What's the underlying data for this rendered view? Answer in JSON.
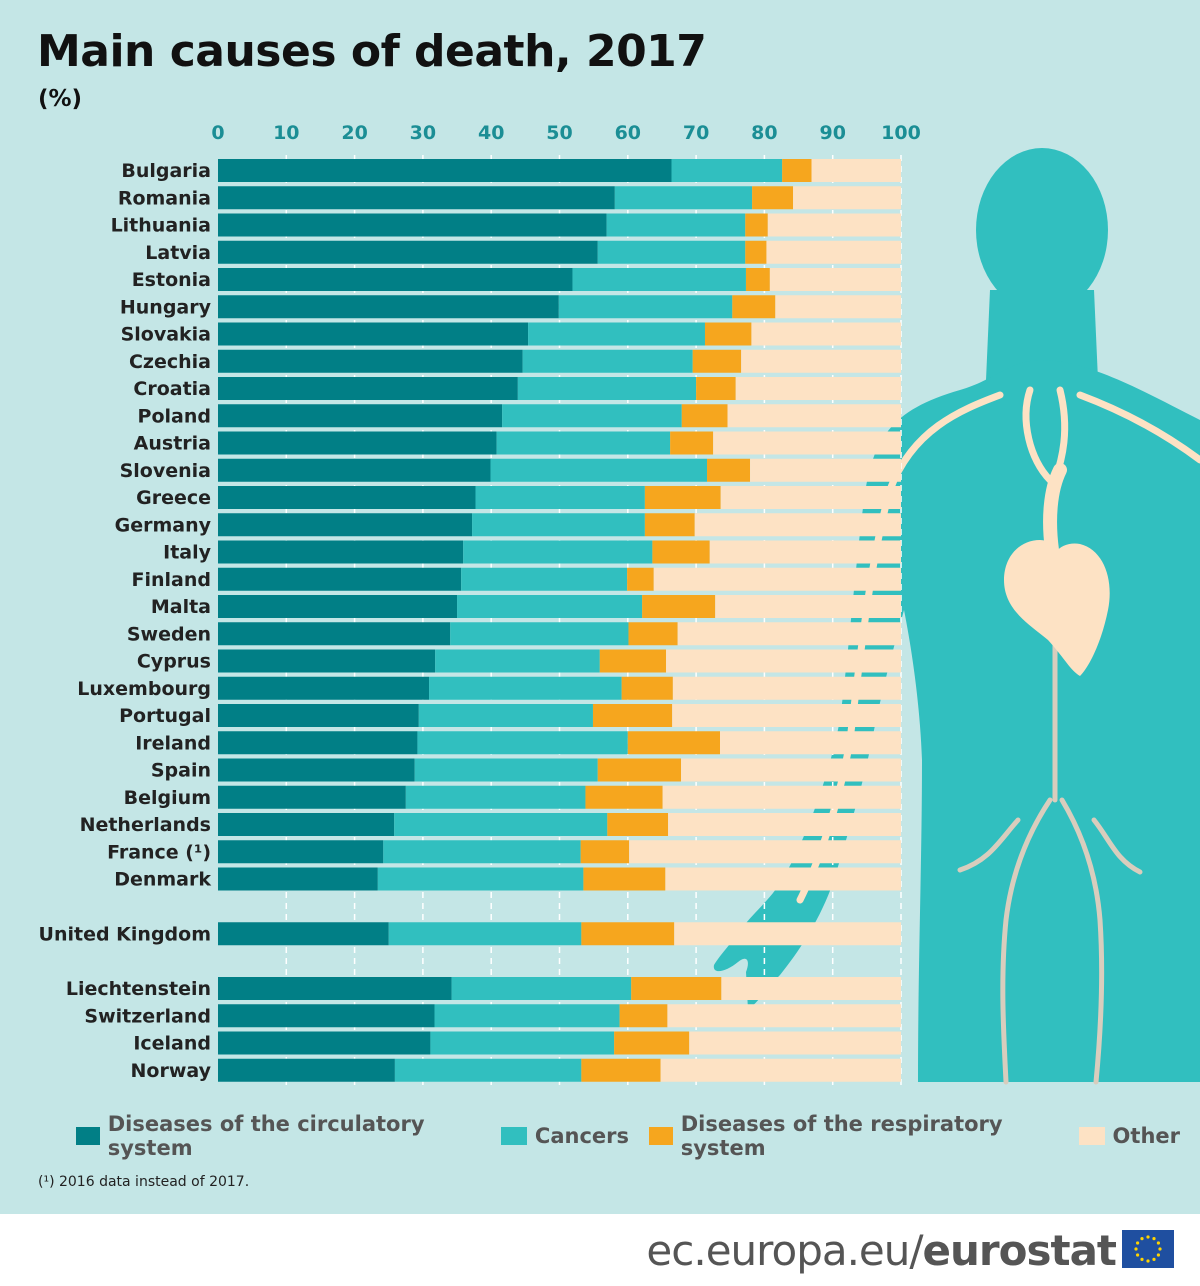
{
  "header": {
    "title": "Main causes of death, 2017",
    "subtitle": "(%)"
  },
  "chart_data": {
    "type": "bar",
    "orientation": "horizontal",
    "stacked": true,
    "xlim": [
      0,
      100
    ],
    "x_ticks": [
      "0",
      "10",
      "20",
      "30",
      "40",
      "50",
      "60",
      "70",
      "80",
      "90",
      "100"
    ],
    "grid": true,
    "legend_position": "bottom",
    "categories": [
      "Bulgaria",
      "Romania",
      "Lithuania",
      "Latvia",
      "Estonia",
      "Hungary",
      "Slovakia",
      "Czechia",
      "Croatia",
      "Poland",
      "Austria",
      "Slovenia",
      "Greece",
      "Germany",
      "Italy",
      "Finland",
      "Malta",
      "Sweden",
      "Cyprus",
      "Luxembourg",
      "Portugal",
      "Ireland",
      "Spain",
      "Belgium",
      "Netherlands",
      "France (¹)",
      "Denmark",
      "United Kingdom",
      "Liechtenstein",
      "Switzerland",
      "Iceland",
      "Norway"
    ],
    "groups": [
      27,
      1,
      4
    ],
    "series": [
      {
        "name": "Diseases of the circulatory system",
        "color": "#017f86",
        "values": [
          66.4,
          58.1,
          56.9,
          55.6,
          51.9,
          49.9,
          45.4,
          44.6,
          43.9,
          41.6,
          40.8,
          39.9,
          37.7,
          37.2,
          35.9,
          35.6,
          35.0,
          34.0,
          31.8,
          30.9,
          29.4,
          29.2,
          28.8,
          27.5,
          25.8,
          24.2,
          23.4,
          25.0,
          34.2,
          31.7,
          31.1,
          25.9
        ]
      },
      {
        "name": "Cancers",
        "color": "#31bfbf",
        "values": [
          16.2,
          20.1,
          20.3,
          21.6,
          25.4,
          25.4,
          25.9,
          24.9,
          26.1,
          26.3,
          25.4,
          31.7,
          24.8,
          25.3,
          27.7,
          24.3,
          27.1,
          26.1,
          24.1,
          28.2,
          25.5,
          30.8,
          26.8,
          26.3,
          31.2,
          28.9,
          30.1,
          28.2,
          26.3,
          27.1,
          26.9,
          27.3
        ]
      },
      {
        "name": "Diseases of the respiratory system",
        "color": "#f6a61e",
        "values": [
          4.3,
          6.0,
          3.3,
          3.1,
          3.5,
          6.3,
          6.8,
          7.1,
          5.8,
          6.7,
          6.3,
          6.3,
          11.1,
          7.3,
          8.4,
          3.9,
          10.7,
          7.2,
          9.7,
          7.5,
          11.6,
          13.5,
          12.2,
          11.3,
          8.9,
          7.1,
          12.0,
          13.6,
          13.2,
          7.0,
          11.0,
          11.6
        ]
      },
      {
        "name": "Other",
        "color": "#fde2c4",
        "values": [
          13.1,
          15.8,
          19.5,
          19.7,
          19.2,
          18.4,
          21.9,
          23.4,
          24.2,
          25.4,
          27.5,
          22.1,
          26.4,
          30.2,
          28.0,
          36.2,
          27.2,
          32.7,
          34.4,
          33.4,
          33.5,
          26.5,
          32.2,
          34.9,
          34.1,
          39.8,
          34.5,
          33.2,
          26.3,
          34.2,
          31.0,
          35.2
        ]
      }
    ]
  },
  "footnote": "(¹) 2016 data instead of 2017.",
  "footer": {
    "site_prefix": "ec.europa.eu/",
    "site_brand": "eurostat"
  }
}
